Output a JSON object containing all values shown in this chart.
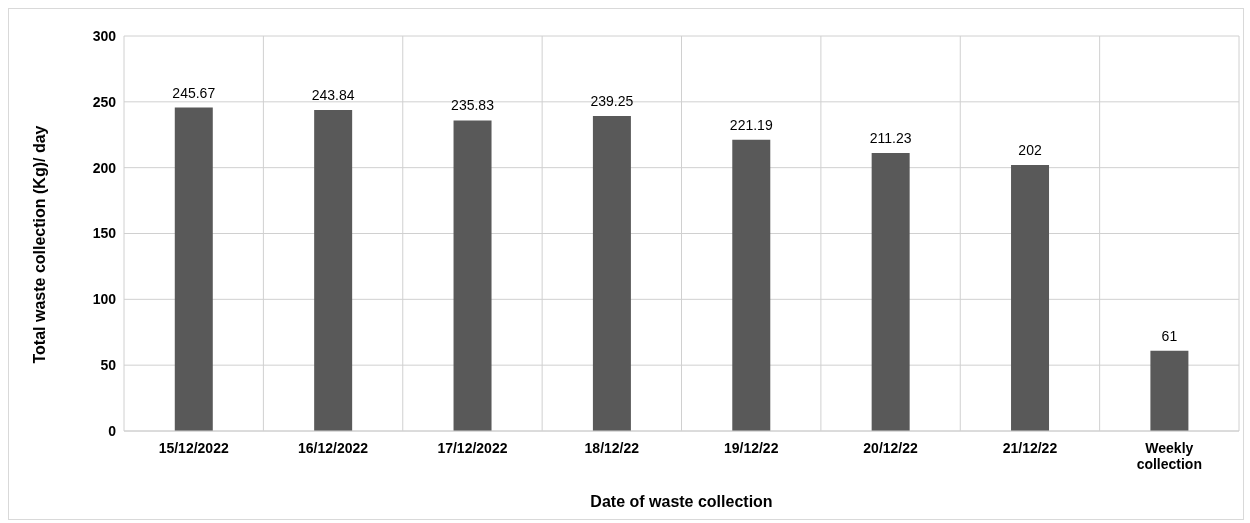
{
  "chart_data": {
    "type": "bar",
    "xlabel": "Date of waste collection",
    "ylabel": "Total waste collection  (Kg)/ day",
    "categories": [
      "15/12/2022",
      "16/12/2022",
      "17/12/2022",
      "18/12/22",
      "19/12/22",
      "20/12/22",
      "21/12/22",
      "Weekly collection"
    ],
    "values": [
      245.67,
      243.84,
      235.83,
      239.25,
      221.19,
      211.23,
      202,
      61
    ],
    "color": "#595959",
    "ylim": [
      0,
      300
    ],
    "yticks": [
      0,
      50,
      100,
      150,
      200,
      250,
      300
    ],
    "grid": true,
    "data_labels": true
  }
}
